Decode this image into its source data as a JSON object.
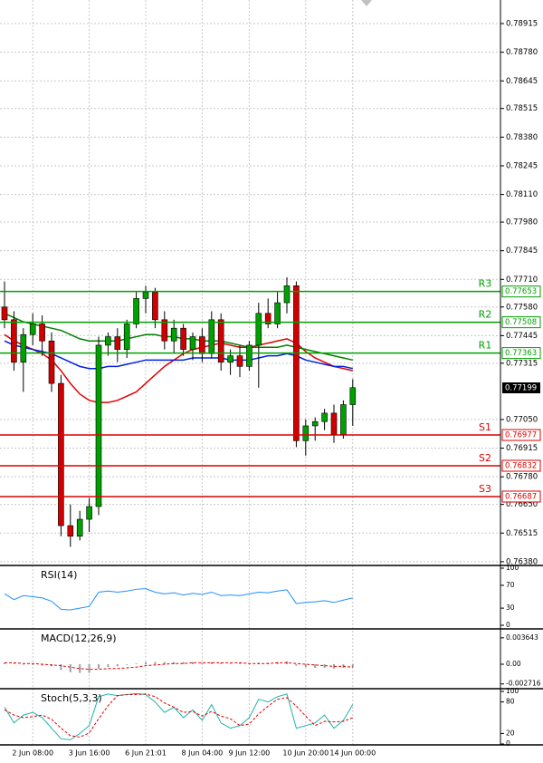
{
  "chart_data": {
    "type": "candlestick",
    "categories": [
      null,
      null,
      null,
      "2 Jun 08:00",
      null,
      null,
      null,
      null,
      null,
      "3 Jun 16:00",
      null,
      null,
      null,
      null,
      null,
      "6 Jun 21:01",
      null,
      null,
      null,
      null,
      null,
      "8 Jun 04:00",
      null,
      null,
      null,
      null,
      "9 Jun 12:00",
      null,
      null,
      null,
      null,
      null,
      "10 Jun 20:00",
      null,
      null,
      null,
      null,
      "14 Jun 00:00"
    ],
    "open": [
      0.7758,
      0.7752,
      0.7732,
      0.7745,
      0.775,
      0.7742,
      0.7722,
      0.7655,
      0.765,
      0.7658,
      0.7664,
      0.774,
      0.7744,
      0.7738,
      0.775,
      0.7762,
      0.7765,
      0.7752,
      0.7742,
      0.7748,
      0.7738,
      0.7744,
      0.7736,
      0.7752,
      0.7732,
      0.7735,
      0.773,
      0.774,
      0.7755,
      0.775,
      0.776,
      0.7768,
      0.7695,
      0.7702,
      0.7704,
      0.7708,
      0.7698,
      0.7712
    ],
    "high": [
      0.777,
      0.7756,
      0.7748,
      0.7755,
      0.7754,
      0.7746,
      0.7726,
      0.7665,
      0.7662,
      0.7668,
      0.7744,
      0.7746,
      0.7748,
      0.7752,
      0.7765,
      0.7768,
      0.7767,
      0.7756,
      0.7752,
      0.775,
      0.7746,
      0.7748,
      0.7756,
      0.7755,
      0.7738,
      0.774,
      0.7742,
      0.776,
      0.7762,
      0.7765,
      0.7772,
      0.777,
      0.7705,
      0.7706,
      0.771,
      0.7712,
      0.7714,
      0.7724
    ],
    "low": [
      0.7748,
      0.7728,
      0.7718,
      0.774,
      0.7735,
      0.7718,
      0.765,
      0.7645,
      0.7648,
      0.7652,
      0.766,
      0.7735,
      0.7732,
      0.7734,
      0.7748,
      0.7755,
      0.7748,
      0.7738,
      0.7736,
      0.7735,
      0.7733,
      0.7732,
      0.7734,
      0.7728,
      0.7726,
      0.7725,
      0.7728,
      0.772,
      0.7748,
      0.7748,
      0.7755,
      0.7692,
      0.7688,
      0.7695,
      0.77,
      0.7694,
      0.7696,
      0.7702
    ],
    "close": [
      0.7752,
      0.7732,
      0.7745,
      0.775,
      0.7742,
      0.7722,
      0.7655,
      0.765,
      0.7658,
      0.7664,
      0.774,
      0.7744,
      0.7738,
      0.775,
      0.7762,
      0.7765,
      0.7752,
      0.7742,
      0.7748,
      0.7738,
      0.7744,
      0.7736,
      0.7752,
      0.7732,
      0.7735,
      0.773,
      0.774,
      0.7755,
      0.775,
      0.776,
      0.7768,
      0.7695,
      0.7702,
      0.7704,
      0.7708,
      0.7698,
      0.7712,
      0.772
    ],
    "up_color": "#00a000",
    "down_color": "#d00000",
    "moving_averages": [
      {
        "color": "#e00000",
        "values": [
          0.7745,
          0.7742,
          0.774,
          0.7738,
          0.7736,
          0.7733,
          0.7728,
          0.7722,
          0.7717,
          0.7714,
          0.7713,
          0.7713,
          0.7714,
          0.7716,
          0.7718,
          0.7722,
          0.7726,
          0.773,
          0.7733,
          0.7736,
          0.7738,
          0.7739,
          0.774,
          0.7741,
          0.774,
          0.7739,
          0.7739,
          0.774,
          0.7741,
          0.7742,
          0.7743,
          0.7741,
          0.7737,
          0.7734,
          0.7732,
          0.773,
          0.7729,
          0.7728
        ]
      },
      {
        "color": "#0020e0",
        "values": [
          0.7742,
          0.774,
          0.7739,
          0.7738,
          0.7737,
          0.7736,
          0.7734,
          0.7732,
          0.773,
          0.7729,
          0.7729,
          0.773,
          0.773,
          0.7731,
          0.7732,
          0.7733,
          0.7733,
          0.7733,
          0.7733,
          0.7733,
          0.7734,
          0.7734,
          0.7734,
          0.7734,
          0.7733,
          0.7733,
          0.7733,
          0.7734,
          0.7735,
          0.7735,
          0.7736,
          0.7735,
          0.7733,
          0.7732,
          0.7731,
          0.773,
          0.773,
          0.7729
        ]
      },
      {
        "color": "#008000",
        "values": [
          0.7755,
          0.7753,
          0.7751,
          0.775,
          0.7749,
          0.7748,
          0.7747,
          0.7745,
          0.7743,
          0.7742,
          0.7742,
          0.7742,
          0.7742,
          0.7743,
          0.7744,
          0.7745,
          0.7745,
          0.7744,
          0.7744,
          0.7743,
          0.7743,
          0.7742,
          0.7742,
          0.7742,
          0.7741,
          0.774,
          0.7739,
          0.7739,
          0.7739,
          0.7739,
          0.774,
          0.7739,
          0.7738,
          0.7737,
          0.7736,
          0.7735,
          0.7734,
          0.7733
        ]
      }
    ],
    "ylim": [
      0.76371,
      0.79026
    ],
    "yticks": [
      {
        "value": 0.78915,
        "label": "0.78915"
      },
      {
        "value": 0.7878,
        "label": "0.78780"
      },
      {
        "value": 0.78645,
        "label": "0.78645"
      },
      {
        "value": 0.78515,
        "label": "0.78515"
      },
      {
        "value": 0.7838,
        "label": "0.78380"
      },
      {
        "value": 0.78245,
        "label": "0.78245"
      },
      {
        "value": 0.7811,
        "label": "0.78110"
      },
      {
        "value": 0.7798,
        "label": "0.77980"
      },
      {
        "value": 0.77845,
        "label": "0.77845"
      },
      {
        "value": 0.7771,
        "label": "0.77710"
      },
      {
        "value": 0.7758,
        "label": "0.77580"
      },
      {
        "value": 0.77445,
        "label": "0.77445"
      },
      {
        "value": 0.77315,
        "label": "0.77315"
      },
      {
        "value": 0.7705,
        "label": "0.77050"
      },
      {
        "value": 0.76915,
        "label": "0.76915"
      },
      {
        "value": 0.7678,
        "label": "0.76780"
      },
      {
        "value": 0.7665,
        "label": "0.76650"
      },
      {
        "value": 0.76515,
        "label": "0.76515"
      },
      {
        "value": 0.7638,
        "label": "0.76380"
      }
    ],
    "grid": true,
    "levels": [
      {
        "name": "R3",
        "value": 0.77653,
        "color": "#00a000"
      },
      {
        "name": "R2",
        "value": 0.77508,
        "color": "#00a000"
      },
      {
        "name": "R1",
        "value": 0.77363,
        "color": "#00a000"
      },
      {
        "name": "S1",
        "value": 0.76977,
        "color": "#e00000"
      },
      {
        "name": "S2",
        "value": 0.76832,
        "color": "#e00000"
      },
      {
        "name": "S3",
        "value": 0.76687,
        "color": "#e00000"
      }
    ],
    "current_price": 0.77199,
    "indicators": [
      {
        "type": "line",
        "title": "RSI(14)",
        "ylim": [
          0,
          100
        ],
        "yticks": [
          100,
          70,
          30,
          0
        ],
        "series": [
          {
            "color": "#1e90ff",
            "dashed": false,
            "values": [
              55,
              45,
              52,
              50,
              48,
              42,
              28,
              27,
              30,
              33,
              58,
              60,
              58,
              60,
              63,
              64,
              58,
              55,
              57,
              53,
              56,
              54,
              58,
              52,
              53,
              52,
              55,
              58,
              57,
              60,
              62,
              38,
              40,
              41,
              43,
              40,
              44,
              48
            ]
          }
        ]
      },
      {
        "type": "macd",
        "title": "MACD(12,26,9)",
        "ylim": [
          -0.003,
          0.0045
        ],
        "yticks": [
          0.003643,
          {
            "value": 0,
            "label": "0.00"
          },
          -0.002716
        ],
        "histogram_color": "#a0a0a0",
        "signal_color": "#e00000",
        "histogram": [
          0.0002,
          0.0001,
          0.0,
          -0.0001,
          -0.0002,
          -0.0003,
          -0.0008,
          -0.0011,
          -0.0012,
          -0.0012,
          -0.0006,
          -0.0004,
          -0.0003,
          -0.0001,
          0.0001,
          0.0003,
          0.0003,
          0.0003,
          0.0003,
          0.0003,
          0.0003,
          0.0002,
          0.0003,
          0.0002,
          0.0001,
          0.0001,
          0.0001,
          0.0002,
          0.0002,
          0.0003,
          0.0004,
          -0.0002,
          -0.0004,
          -0.0005,
          -0.0005,
          -0.0006,
          -0.0005,
          -0.0004
        ],
        "signal": [
          0.0002,
          0.0002,
          0.0001,
          0.0001,
          0.0,
          -0.0001,
          -0.0002,
          -0.0004,
          -0.0006,
          -0.0007,
          -0.0007,
          -0.0006,
          -0.0006,
          -0.0005,
          -0.0004,
          -0.0002,
          -0.0001,
          0.0,
          0.0001,
          0.0001,
          0.0002,
          0.0002,
          0.0002,
          0.0002,
          0.0002,
          0.0002,
          0.0001,
          0.0001,
          0.0001,
          0.0002,
          0.0002,
          0.0001,
          0.0,
          -0.0001,
          -0.0002,
          -0.0003,
          -0.0003,
          -0.0004
        ]
      },
      {
        "type": "line",
        "title": "Stoch(5,3,3)",
        "ylim": [
          0,
          100
        ],
        "yticks": [
          100,
          80,
          20,
          0
        ],
        "series": [
          {
            "color": "#20b2aa",
            "dashed": false,
            "values": [
              70,
              40,
              55,
              60,
              50,
              30,
              10,
              8,
              20,
              35,
              90,
              95,
              92,
              94,
              96,
              94,
              80,
              60,
              70,
              50,
              65,
              45,
              75,
              40,
              30,
              35,
              50,
              85,
              80,
              90,
              95,
              30,
              35,
              40,
              55,
              30,
              45,
              75
            ]
          },
          {
            "color": "#e00000",
            "dashed": true,
            "values": [
              65,
              55,
              50,
              52,
              55,
              47,
              30,
              16,
              13,
              21,
              48,
              73,
              92,
              94,
              94,
              95,
              90,
              78,
              70,
              60,
              62,
              53,
              62,
              53,
              48,
              35,
              38,
              57,
              72,
              85,
              88,
              72,
              53,
              35,
              43,
              42,
              43,
              50
            ]
          }
        ]
      }
    ]
  }
}
